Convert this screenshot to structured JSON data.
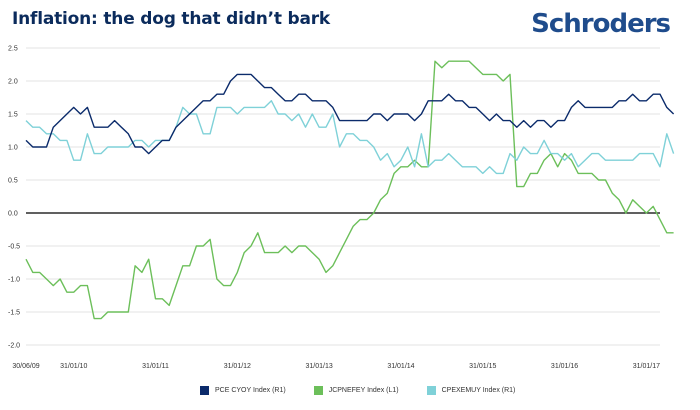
{
  "header": {
    "title": "Inflation: the dog that didn’t bark",
    "logo": "Schroders"
  },
  "chart_data": {
    "type": "line",
    "title": "Inflation: the dog that didn’t bark",
    "ylim": [
      -2.0,
      2.5
    ],
    "yticks": [
      "2.5",
      "2.0",
      "1.5",
      "1.0",
      "0.5",
      "0.0",
      "-0.5",
      "-1.0",
      "-1.5",
      "-2.0"
    ],
    "ytick_values": [
      2.5,
      2.0,
      1.5,
      1.0,
      0.5,
      0.0,
      -0.5,
      -1.0,
      -1.5,
      -2.0
    ],
    "xticks": [
      "30/06/09",
      "31/01/10",
      "31/01/11",
      "31/01/12",
      "31/01/13",
      "31/01/14",
      "31/01/15",
      "31/01/16",
      "31/01/17"
    ],
    "xtick_months": [
      0,
      7,
      19,
      31,
      43,
      55,
      67,
      79,
      91
    ],
    "x_total_months": 93,
    "grid": true,
    "zero_line": true,
    "series": [
      {
        "name": "PCE CYOY Index  (R1)",
        "color": "#0b2b6b",
        "values": [
          1.1,
          1.0,
          1.0,
          1.0,
          1.3,
          1.4,
          1.5,
          1.6,
          1.5,
          1.6,
          1.3,
          1.3,
          1.3,
          1.4,
          1.3,
          1.2,
          1.0,
          1.0,
          0.9,
          1.0,
          1.1,
          1.1,
          1.3,
          1.4,
          1.5,
          1.6,
          1.7,
          1.7,
          1.8,
          1.8,
          2.0,
          2.1,
          2.1,
          2.1,
          2.0,
          1.9,
          1.9,
          1.8,
          1.7,
          1.7,
          1.8,
          1.8,
          1.7,
          1.7,
          1.7,
          1.6,
          1.4,
          1.4,
          1.4,
          1.4,
          1.4,
          1.5,
          1.5,
          1.4,
          1.5,
          1.5,
          1.5,
          1.4,
          1.5,
          1.7,
          1.7,
          1.7,
          1.8,
          1.7,
          1.7,
          1.6,
          1.6,
          1.5,
          1.4,
          1.5,
          1.4,
          1.4,
          1.3,
          1.4,
          1.3,
          1.4,
          1.4,
          1.3,
          1.4,
          1.4,
          1.6,
          1.7,
          1.6,
          1.6,
          1.6,
          1.6,
          1.6,
          1.7,
          1.7,
          1.8,
          1.7,
          1.7,
          1.8,
          1.8,
          1.6,
          1.5
        ]
      },
      {
        "name": "JCPNEFEY Index  (L1)",
        "color": "#6cbf5a",
        "values": [
          -0.7,
          -0.9,
          -0.9,
          -1.0,
          -1.1,
          -1.0,
          -1.2,
          -1.2,
          -1.1,
          -1.1,
          -1.6,
          -1.6,
          -1.5,
          -1.5,
          -1.5,
          -1.5,
          -0.8,
          -0.9,
          -0.7,
          -1.3,
          -1.3,
          -1.4,
          -1.1,
          -0.8,
          -0.8,
          -0.5,
          -0.5,
          -0.4,
          -1.0,
          -1.1,
          -1.1,
          -0.9,
          -0.6,
          -0.5,
          -0.3,
          -0.6,
          -0.6,
          -0.6,
          -0.5,
          -0.6,
          -0.5,
          -0.5,
          -0.6,
          -0.7,
          -0.9,
          -0.8,
          -0.6,
          -0.4,
          -0.2,
          -0.1,
          -0.1,
          0.0,
          0.2,
          0.3,
          0.6,
          0.7,
          0.7,
          0.8,
          0.7,
          0.7,
          2.3,
          2.2,
          2.3,
          2.3,
          2.3,
          2.3,
          2.2,
          2.1,
          2.1,
          2.1,
          2.0,
          2.1,
          0.4,
          0.4,
          0.6,
          0.6,
          0.8,
          0.9,
          0.7,
          0.9,
          0.8,
          0.6,
          0.6,
          0.6,
          0.5,
          0.5,
          0.3,
          0.2,
          0.0,
          0.2,
          0.1,
          0.0,
          0.1,
          -0.1,
          -0.3,
          -0.3
        ]
      },
      {
        "name": "CPEXEMUY Index  (R1)",
        "color": "#7fd1d8",
        "values": [
          1.4,
          1.3,
          1.3,
          1.2,
          1.2,
          1.1,
          1.1,
          0.8,
          0.8,
          1.2,
          0.9,
          0.9,
          1.0,
          1.0,
          1.0,
          1.0,
          1.1,
          1.1,
          1.0,
          1.1,
          1.1,
          1.1,
          1.3,
          1.6,
          1.5,
          1.5,
          1.2,
          1.2,
          1.6,
          1.6,
          1.6,
          1.5,
          1.6,
          1.6,
          1.6,
          1.6,
          1.7,
          1.5,
          1.5,
          1.4,
          1.5,
          1.3,
          1.5,
          1.3,
          1.3,
          1.5,
          1.0,
          1.2,
          1.2,
          1.1,
          1.1,
          1.0,
          0.8,
          0.9,
          0.7,
          0.8,
          1.0,
          0.7,
          1.2,
          0.7,
          0.8,
          0.8,
          0.9,
          0.8,
          0.7,
          0.7,
          0.7,
          0.6,
          0.7,
          0.6,
          0.6,
          0.9,
          0.8,
          1.0,
          0.9,
          0.9,
          1.1,
          0.9,
          0.9,
          0.8,
          0.9,
          0.7,
          0.8,
          0.9,
          0.9,
          0.8,
          0.8,
          0.8,
          0.8,
          0.8,
          0.9,
          0.9,
          0.9,
          0.7,
          1.2,
          0.9
        ]
      }
    ]
  }
}
